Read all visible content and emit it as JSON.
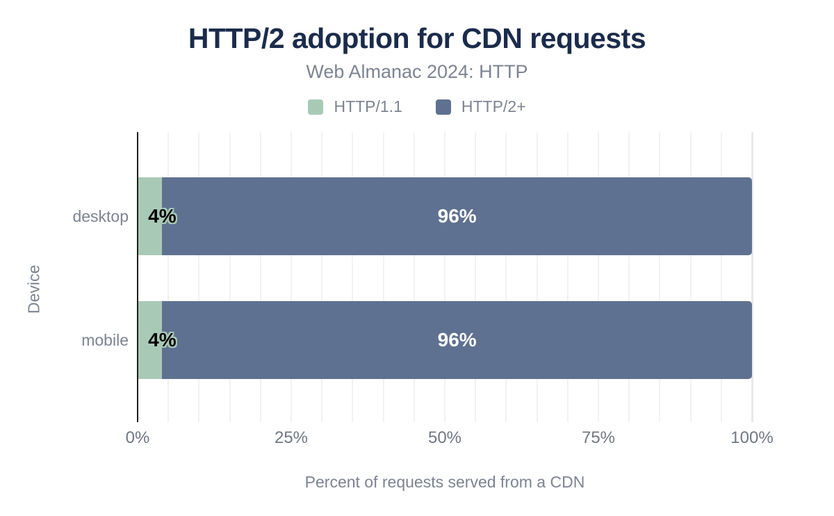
{
  "chart": {
    "title": "HTTP/2 adoption for CDN requests",
    "subtitle": "Web Almanac 2024: HTTP"
  },
  "chart_data": {
    "type": "bar",
    "orientation": "horizontal",
    "stacked": true,
    "title": "HTTP/2 adoption for CDN requests",
    "subtitle": "Web Almanac 2024: HTTP",
    "xlabel": "Percent of requests served from a CDN",
    "ylabel": "Device",
    "categories": [
      "desktop",
      "mobile"
    ],
    "series": [
      {
        "name": "HTTP/1.1",
        "color": "#a9c9b7",
        "values": [
          4,
          4
        ],
        "data_labels": [
          "4%",
          "4%"
        ],
        "label_style": "black-text-with-series-color-halo"
      },
      {
        "name": "HTTP/2+",
        "color": "#5f7191",
        "values": [
          96,
          96
        ],
        "data_labels": [
          "96%",
          "96%"
        ],
        "label_style": "white-text"
      }
    ],
    "xlim": [
      0,
      100
    ],
    "x_ticks": [
      {
        "value": 0,
        "label": "0%"
      },
      {
        "value": 25,
        "label": "25%"
      },
      {
        "value": 50,
        "label": "50%"
      },
      {
        "value": 75,
        "label": "75%"
      },
      {
        "value": 100,
        "label": "100%"
      }
    ],
    "minor_grid_step_percent": 5,
    "legend_position": "top",
    "grid": "vertical-only"
  },
  "colors": {
    "title": "#1b2b4b",
    "text_gray": "#7c8492",
    "tick_gray": "#6f7784",
    "axis_line": "#1c1c1c",
    "gridline": "#f2f2f2",
    "gridline_end": "#e9e9e9"
  }
}
